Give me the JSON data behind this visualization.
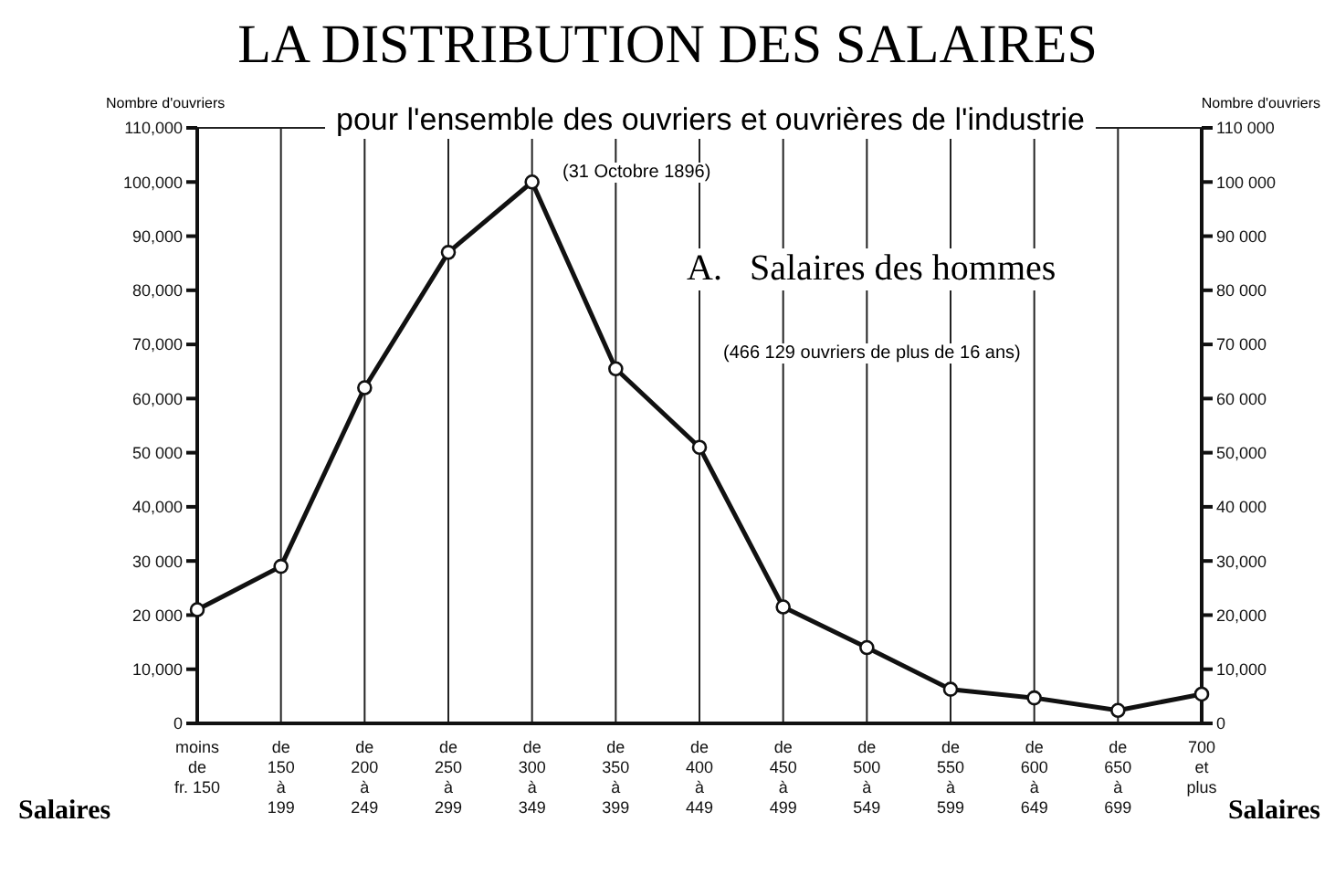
{
  "chart_data": {
    "type": "line",
    "title": "LA DISTRIBUTION DES SALAIRES",
    "subtitle": "pour l'ensemble des ouvriers et ouvrières de l'industrie",
    "xlabel": "Salaires",
    "ylabel": "Nombre d'ouvriers",
    "y2label": "Nombre d'ouvriers",
    "annotations": [
      "(31 Octobre 1896)",
      "A.   Salaires des hommes",
      "(466 129 ouvriers de plus de 16 ans)"
    ],
    "categories": [
      "moins\nde\nfr. 150",
      "de\n150\nà\n199",
      "de\n200\nà\n249",
      "de\n250\nà\n299",
      "de\n300\nà\n349",
      "de\n350\nà\n399",
      "de\n400\nà\n449",
      "de\n450\nà\n499",
      "de\n500\nà\n549",
      "de\n550\nà\n599",
      "de\n600\nà\n649",
      "de\n650\nà\n699",
      "700\net\nplus"
    ],
    "series": [
      {
        "color": "#111111",
        "values": [
          21000,
          29000,
          62000,
          87000,
          100000,
          65500,
          51000,
          21500,
          14000,
          6300,
          4700,
          2400,
          5400
        ]
      }
    ],
    "ylim": [
      0,
      110000
    ],
    "yticks": [
      0,
      {
        "value": 10000,
        "label": "10,000"
      },
      {
        "value": 20000,
        "label": "20 000"
      },
      {
        "value": 30000,
        "label": "30 000"
      },
      {
        "value": 40000,
        "label": "40,000"
      },
      {
        "value": 50000,
        "label": "50 000"
      },
      {
        "value": 60000,
        "label": "60,000"
      },
      {
        "value": 70000,
        "label": "70,000"
      },
      {
        "value": 80000,
        "label": "80,000"
      },
      {
        "value": 90000,
        "label": "90,000"
      },
      {
        "value": 100000,
        "label": "100,000"
      },
      {
        "value": 110000,
        "label": "110,000"
      }
    ],
    "y2lim": [
      0,
      110000
    ],
    "y2ticks": [
      0,
      {
        "value": 10000,
        "label": "10,000"
      },
      {
        "value": 20000,
        "label": "20,000"
      },
      {
        "value": 30000,
        "label": "30,000"
      },
      {
        "value": 40000,
        "label": "40 000"
      },
      {
        "value": 50000,
        "label": "50,000"
      },
      {
        "value": 60000,
        "label": "60 000"
      },
      {
        "value": 70000,
        "label": "70 000"
      },
      {
        "value": 80000,
        "label": "80 000"
      },
      {
        "value": 90000,
        "label": "90 000"
      },
      {
        "value": 100000,
        "label": "100 000"
      },
      {
        "value": 110000,
        "label": "110 000"
      }
    ],
    "grid": true,
    "marker": "circle",
    "line_style": "solid",
    "legend": false
  }
}
